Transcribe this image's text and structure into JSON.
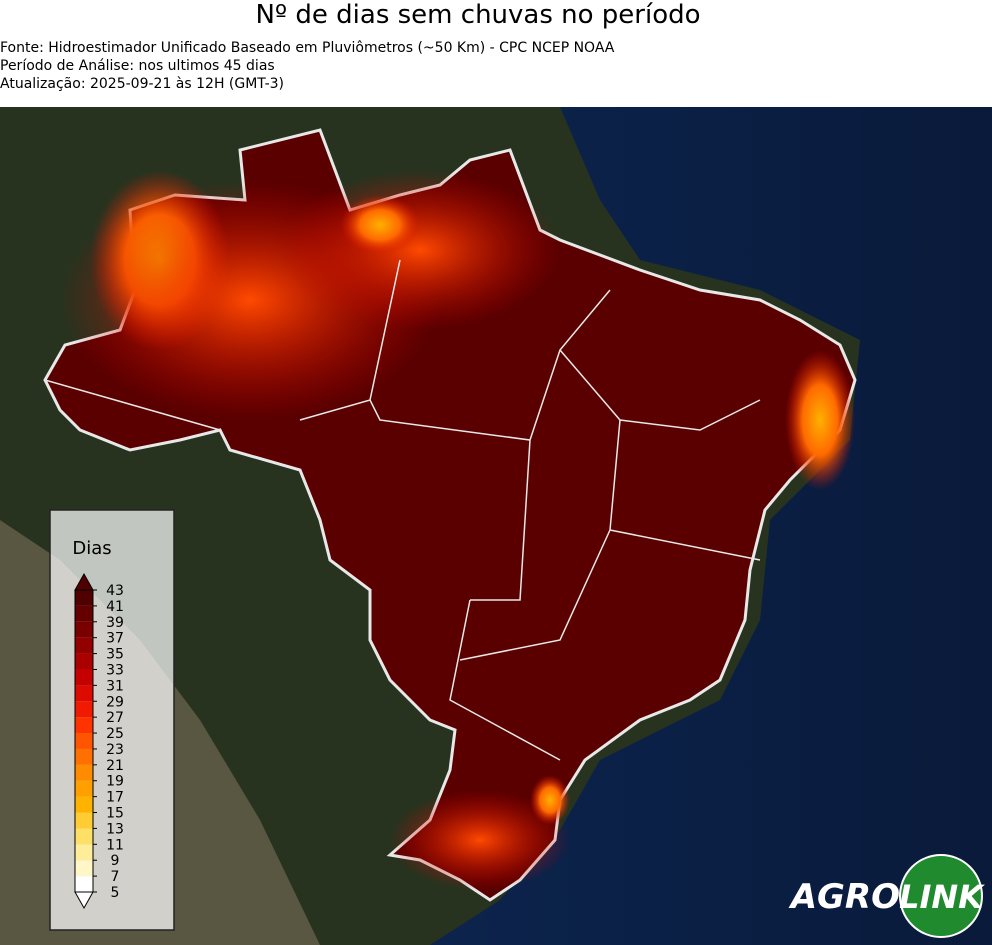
{
  "header": {
    "title": "Nº de dias sem chuvas no período",
    "lines": [
      "Fonte: Hidroestimador Unificado Baseado em Pluviômetros (~50 Km) - CPC NCEP NOAA",
      "Período de Análise: nos ultimos 45 dias",
      "Atualização: 2025-09-21 às 12H (GMT-3)"
    ]
  },
  "colorbar": {
    "label": "Dias",
    "ticks": [
      5,
      7,
      9,
      11,
      13,
      15,
      17,
      19,
      21,
      23,
      25,
      27,
      29,
      31,
      33,
      35,
      37,
      39,
      41,
      43
    ],
    "colors": [
      "#ffffff",
      "#fff7c8",
      "#ffee99",
      "#ffe066",
      "#ffcc33",
      "#ffb300",
      "#ffa000",
      "#ff8c00",
      "#ff7000",
      "#ff5500",
      "#ff3300",
      "#f01a00",
      "#dd0a00",
      "#c40000",
      "#aa0000",
      "#920000",
      "#7a0000",
      "#640000",
      "#500000"
    ]
  },
  "logo": {
    "left": "AGRO",
    "right": "LINK"
  }
}
